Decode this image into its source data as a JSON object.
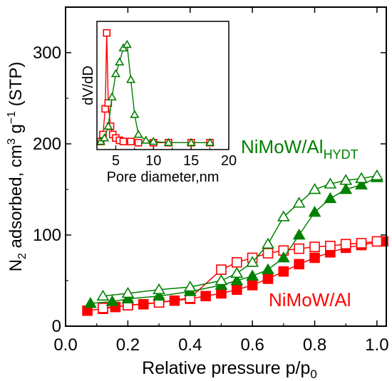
{
  "chart_data": [
    {
      "type": "scatter",
      "xlabel": "Relative pressure p/p",
      "xlabel_sub": "0",
      "ylabel_parts": [
        "N",
        "2",
        " adsorbed, cm",
        "3",
        " g",
        "−1",
        " (STP)"
      ],
      "xlim": [
        0.0,
        1.03
      ],
      "ylim": [
        0,
        350
      ],
      "xticks": [
        "0.0",
        "0.2",
        "0.4",
        "0.6",
        "0.8",
        "1.0"
      ],
      "xtick_values": [
        0.0,
        0.2,
        0.4,
        0.6,
        0.8,
        1.0
      ],
      "yticks": [
        "0",
        "100",
        "200",
        "300"
      ],
      "ytick_values": [
        0,
        100,
        200,
        300
      ],
      "series": [
        {
          "name": "NiMoW/Al",
          "color": "#ff0000",
          "marker": "square",
          "branch": "adsorption",
          "x": [
            0.07,
            0.12,
            0.16,
            0.2,
            0.25,
            0.3,
            0.35,
            0.4,
            0.45,
            0.5,
            0.55,
            0.6,
            0.65,
            0.7,
            0.75,
            0.8,
            0.85,
            0.9,
            0.95,
            1.02
          ],
          "y": [
            17,
            19,
            21,
            23,
            24,
            26,
            28,
            30,
            33,
            36,
            40,
            45,
            52,
            60,
            68,
            75,
            81,
            86,
            89,
            93
          ]
        },
        {
          "name": "NiMoW/Al",
          "color": "#ff0000",
          "marker": "square",
          "branch": "desorption",
          "x": [
            0.12,
            0.2,
            0.3,
            0.4,
            0.5,
            0.55,
            0.6,
            0.65,
            0.7,
            0.75,
            0.8,
            0.85,
            0.9,
            0.95,
            1.0
          ],
          "y": [
            20,
            23,
            26,
            31,
            62,
            70,
            75,
            80,
            83,
            85,
            87,
            88,
            90,
            91,
            93
          ]
        },
        {
          "name": "NiMoW/Al",
          "name_sub": "HYDT",
          "color": "#008000",
          "marker": "triangle",
          "branch": "adsorption",
          "x": [
            0.08,
            0.15,
            0.2,
            0.3,
            0.4,
            0.5,
            0.55,
            0.6,
            0.65,
            0.7,
            0.75,
            0.8,
            0.85,
            0.9,
            0.95,
            1.0
          ],
          "y": [
            25,
            27,
            30,
            33,
            38,
            45,
            50,
            55,
            62,
            75,
            100,
            125,
            140,
            150,
            155,
            163
          ]
        },
        {
          "name": "NiMoW/Al",
          "name_sub": "HYDT",
          "color": "#008000",
          "marker": "triangle",
          "branch": "desorption",
          "x": [
            0.12,
            0.2,
            0.3,
            0.4,
            0.5,
            0.55,
            0.6,
            0.65,
            0.7,
            0.75,
            0.8,
            0.85,
            0.9,
            0.95,
            1.0
          ],
          "y": [
            33,
            36,
            40,
            43,
            50,
            58,
            70,
            90,
            120,
            135,
            150,
            156,
            160,
            162,
            165
          ]
        }
      ],
      "annotations": [
        {
          "text": "NiMoW/Al",
          "sub": "HYDT",
          "color": "#008000"
        },
        {
          "text": "NiMoW/Al",
          "color": "#ff0000"
        }
      ]
    },
    {
      "type": "line",
      "inset": true,
      "xlabel": "Pore diameter,nm",
      "ylabel": "dV/dD",
      "xlim": [
        2.5,
        20
      ],
      "ylim": [
        0,
        1
      ],
      "xticks": [
        "5",
        "10",
        "15",
        "20"
      ],
      "xtick_values": [
        5,
        10,
        15,
        20
      ],
      "series": [
        {
          "name": "NiMoW/Al",
          "color": "#ff0000",
          "marker": "square",
          "x": [
            3.0,
            3.3,
            3.6,
            3.8,
            4.0,
            4.3,
            4.6,
            5.0,
            5.5,
            6.0,
            7.0,
            8.0,
            10.0,
            12.0,
            15.0,
            17.5
          ],
          "y": [
            0.02,
            0.08,
            0.3,
            0.95,
            0.35,
            0.15,
            0.08,
            0.05,
            0.03,
            0.02,
            0.02,
            0.01,
            0.01,
            0.01,
            0.01,
            0.01
          ]
        },
        {
          "name": "NiMoW/Al",
          "name_sub": "HYDT",
          "color": "#008000",
          "marker": "triangle",
          "x": [
            3.0,
            3.5,
            4.0,
            4.5,
            5.0,
            5.5,
            6.0,
            6.5,
            7.0,
            7.5,
            8.0,
            9.0,
            10.0,
            12.0,
            15.0,
            17.5
          ],
          "y": [
            0.02,
            0.05,
            0.15,
            0.4,
            0.6,
            0.7,
            0.82,
            0.85,
            0.55,
            0.25,
            0.08,
            0.03,
            0.02,
            0.01,
            0.01,
            0.01
          ]
        }
      ]
    }
  ]
}
